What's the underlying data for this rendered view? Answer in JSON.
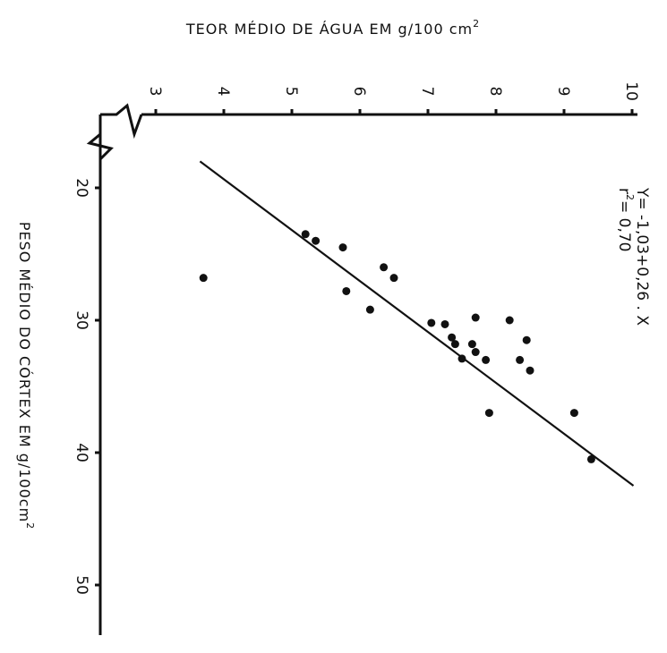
{
  "chart_data": {
    "type": "scatter",
    "x_axis": {
      "label": "PESO MÉDIO DO CÓRTEX EM g/100cm",
      "label_superscript": "2",
      "ticks": [
        20,
        30,
        40,
        50
      ],
      "range": [
        15,
        55
      ]
    },
    "y_axis": {
      "label": "TEOR MÉDIO DE ÁGUA EM g/100 cm",
      "label_superscript": "2",
      "ticks": [
        3,
        4,
        5,
        6,
        7,
        8,
        9,
        10
      ],
      "range": [
        3,
        10
      ],
      "axis_break": true
    },
    "points": [
      {
        "x": 23.5,
        "y": 5.2
      },
      {
        "x": 24.0,
        "y": 5.35
      },
      {
        "x": 24.5,
        "y": 5.75
      },
      {
        "x": 26.0,
        "y": 6.35
      },
      {
        "x": 26.8,
        "y": 6.5
      },
      {
        "x": 26.8,
        "y": 3.7
      },
      {
        "x": 27.8,
        "y": 5.8
      },
      {
        "x": 29.2,
        "y": 6.15
      },
      {
        "x": 29.8,
        "y": 7.7
      },
      {
        "x": 30.0,
        "y": 8.2
      },
      {
        "x": 30.2,
        "y": 7.05
      },
      {
        "x": 30.3,
        "y": 7.25
      },
      {
        "x": 31.3,
        "y": 7.35
      },
      {
        "x": 31.5,
        "y": 8.45
      },
      {
        "x": 31.8,
        "y": 7.4
      },
      {
        "x": 31.8,
        "y": 7.65
      },
      {
        "x": 32.4,
        "y": 7.7
      },
      {
        "x": 32.9,
        "y": 7.5
      },
      {
        "x": 33.0,
        "y": 7.85
      },
      {
        "x": 33.0,
        "y": 8.35
      },
      {
        "x": 33.8,
        "y": 8.5
      },
      {
        "x": 37.0,
        "y": 7.9
      },
      {
        "x": 37.0,
        "y": 9.15
      },
      {
        "x": 40.5,
        "y": 9.4
      }
    ],
    "regression": {
      "intercept": -1.03,
      "slope": 0.26,
      "x_range": [
        18.0,
        42.5
      ]
    },
    "annotation": {
      "equation": "Y= -1,03+0,26 . X",
      "r2_label": "r",
      "r2_superscript": "2",
      "r2_value": "= 0,70"
    },
    "grid": false,
    "legend": "none",
    "orientation": "rotated 90° clockwise"
  }
}
